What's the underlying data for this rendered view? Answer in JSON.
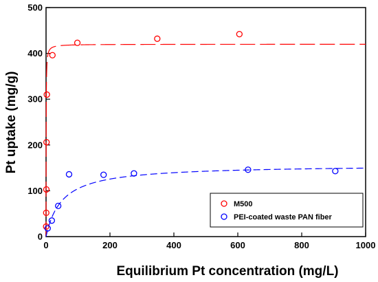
{
  "chart_data": {
    "type": "scatter",
    "xlabel": "Equilibrium Pt concentration (mg/L)",
    "ylabel": "Pt uptake (mg/g)",
    "xlim": [
      0,
      1000
    ],
    "ylim": [
      0,
      500
    ],
    "x_ticks": [
      "0",
      "200",
      "400",
      "600",
      "800",
      "1000"
    ],
    "y_ticks": [
      "0",
      "100",
      "200",
      "300",
      "400",
      "500"
    ],
    "grid": false,
    "legend_position": "bottom-right",
    "series": [
      {
        "name": "M500",
        "color": "#ff0000",
        "marker": "open-circle",
        "fit_line": "long-dash",
        "x": [
          0.3,
          0.6,
          1.0,
          1.5,
          2.5,
          20,
          98,
          348,
          605
        ],
        "y": [
          22,
          52,
          103,
          206,
          310,
          396,
          423,
          432,
          442
        ]
      },
      {
        "name": "PEI-coated waste PAN fiber",
        "color": "#0000ff",
        "marker": "open-circle",
        "fit_line": "dash",
        "x": [
          5,
          18,
          38,
          72,
          180,
          275,
          632,
          905
        ],
        "y": [
          18,
          35,
          67,
          136,
          135,
          138,
          146,
          143
        ]
      }
    ]
  }
}
